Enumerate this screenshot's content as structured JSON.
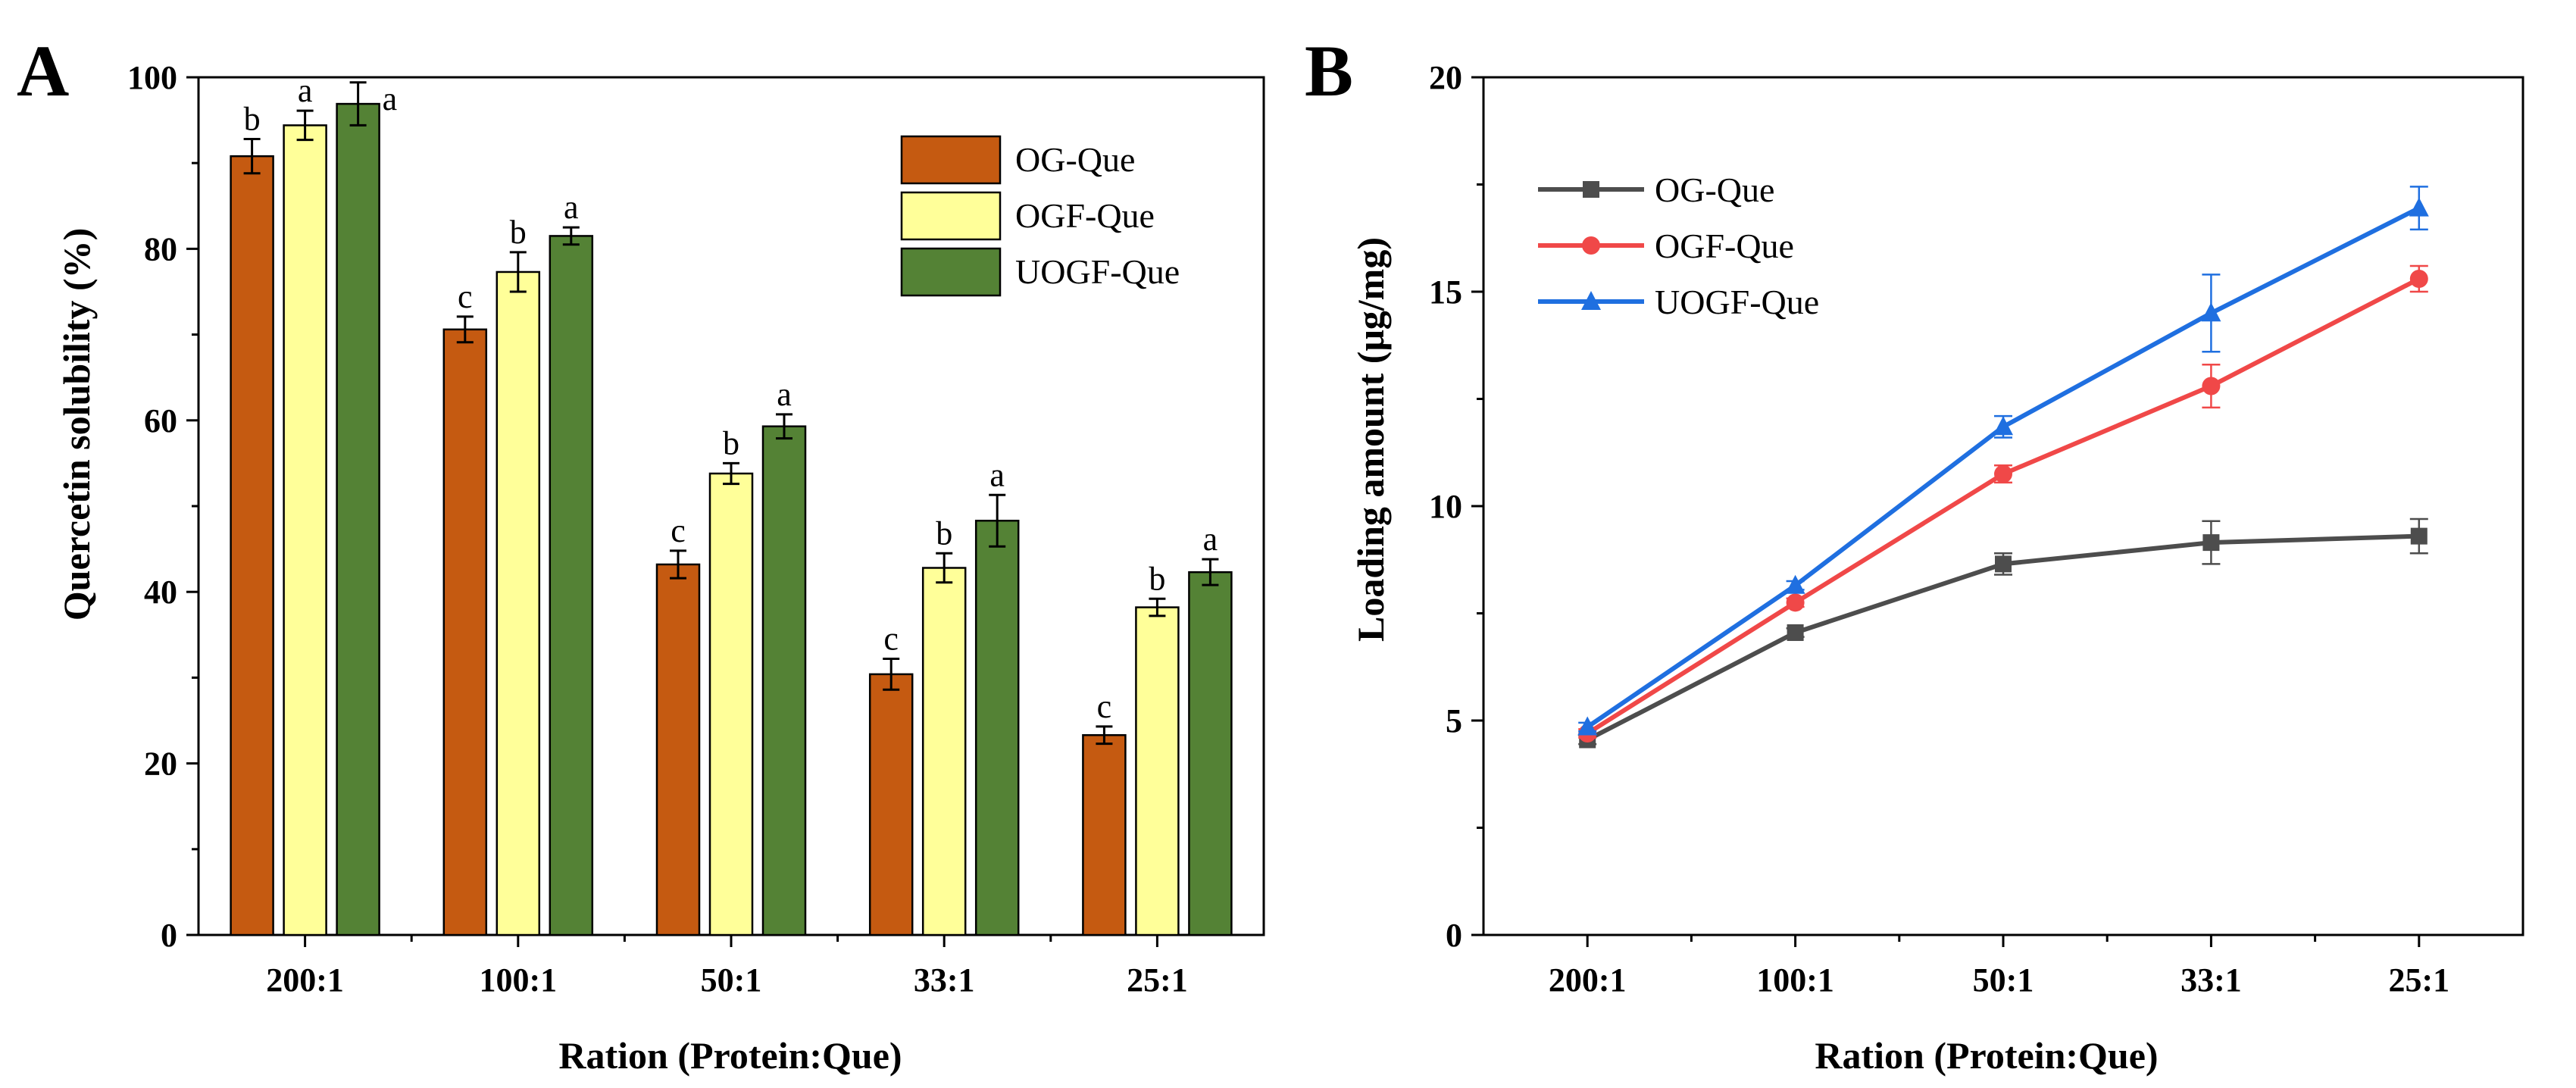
{
  "panels": {
    "a_label": "A",
    "b_label": "B"
  },
  "chart_data": [
    {
      "type": "bar",
      "title": "",
      "xlabel": "Ration (Protein:Que)",
      "ylabel": "Quercetin solubility (%)",
      "ylim": [
        0,
        100
      ],
      "yticks": [
        "0",
        "20",
        "40",
        "60",
        "80",
        "100"
      ],
      "categories": [
        "200:1",
        "100:1",
        "50:1",
        "33:1",
        "25:1"
      ],
      "legend_position": "top-right",
      "series": [
        {
          "name": "OG-Que",
          "color": "#c55a11",
          "values": [
            90.8,
            70.6,
            43.2,
            30.4,
            23.3
          ],
          "errors": [
            2.0,
            1.5,
            1.6,
            1.8,
            1.0
          ],
          "letters": [
            "b",
            "c",
            "c",
            "c",
            "c"
          ]
        },
        {
          "name": "OGF-Que",
          "color": "#ffff99",
          "values": [
            94.4,
            77.3,
            53.8,
            42.8,
            38.2
          ],
          "errors": [
            1.7,
            2.3,
            1.2,
            1.7,
            1.0
          ],
          "letters": [
            "a",
            "b",
            "b",
            "b",
            "b"
          ]
        },
        {
          "name": "UOGF-Que",
          "color": "#548235",
          "values": [
            96.9,
            81.5,
            59.3,
            48.3,
            42.3
          ],
          "errors": [
            2.5,
            1.0,
            1.4,
            3.0,
            1.5
          ],
          "letters": [
            "a",
            "a",
            "a",
            "a",
            "a"
          ]
        }
      ]
    },
    {
      "type": "line",
      "title": "",
      "xlabel": "Ration (Protein:Que)",
      "ylabel": "Loading amount (μg/mg)",
      "ylim": [
        0,
        20
      ],
      "yticks": [
        "0",
        "5",
        "10",
        "15",
        "20"
      ],
      "categories": [
        "200:1",
        "100:1",
        "50:1",
        "33:1",
        "25:1"
      ],
      "legend_position": "top-left",
      "series": [
        {
          "name": "OG-Que",
          "color": "#4d4d4d",
          "marker": "square",
          "values": [
            4.55,
            7.05,
            8.65,
            9.15,
            9.3
          ],
          "errors": [
            0.1,
            0.1,
            0.25,
            0.5,
            0.4
          ]
        },
        {
          "name": "OGF-Que",
          "color": "#f04848",
          "marker": "circle",
          "values": [
            4.7,
            7.75,
            10.75,
            12.8,
            15.3
          ],
          "errors": [
            0.1,
            0.1,
            0.2,
            0.5,
            0.3
          ]
        },
        {
          "name": "UOGF-Que",
          "color": "#1f6fe0",
          "marker": "triangle",
          "values": [
            4.85,
            8.15,
            11.85,
            14.5,
            16.95
          ],
          "errors": [
            0.1,
            0.1,
            0.25,
            0.9,
            0.5
          ]
        }
      ]
    }
  ]
}
